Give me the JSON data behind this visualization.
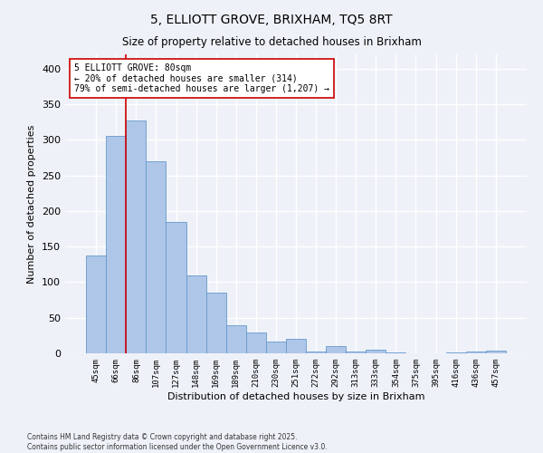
{
  "title1": "5, ELLIOTT GROVE, BRIXHAM, TQ5 8RT",
  "title2": "Size of property relative to detached houses in Brixham",
  "xlabel": "Distribution of detached houses by size in Brixham",
  "ylabel": "Number of detached properties",
  "bar_labels": [
    "45sqm",
    "66sqm",
    "86sqm",
    "107sqm",
    "127sqm",
    "148sqm",
    "169sqm",
    "189sqm",
    "210sqm",
    "230sqm",
    "251sqm",
    "272sqm",
    "292sqm",
    "313sqm",
    "333sqm",
    "354sqm",
    "375sqm",
    "395sqm",
    "416sqm",
    "436sqm",
    "457sqm"
  ],
  "bar_values": [
    138,
    305,
    327,
    270,
    185,
    109,
    85,
    39,
    29,
    16,
    21,
    3,
    10,
    3,
    5,
    1,
    0,
    0,
    1,
    3,
    4
  ],
  "bar_color": "#aec6e8",
  "bar_edge_color": "#6699cc",
  "vline_color": "#cc0000",
  "annotation_text": "5 ELLIOTT GROVE: 80sqm\n← 20% of detached houses are smaller (314)\n79% of semi-detached houses are larger (1,207) →",
  "annotation_box_color": "#ffffff",
  "annotation_box_edge": "#cc0000",
  "ylim": [
    0,
    420
  ],
  "yticks": [
    0,
    50,
    100,
    150,
    200,
    250,
    300,
    350,
    400
  ],
  "footer1": "Contains HM Land Registry data © Crown copyright and database right 2025.",
  "footer2": "Contains public sector information licensed under the Open Government Licence v3.0.",
  "bg_color": "#eef2f8",
  "grid_color": "#ffffff"
}
